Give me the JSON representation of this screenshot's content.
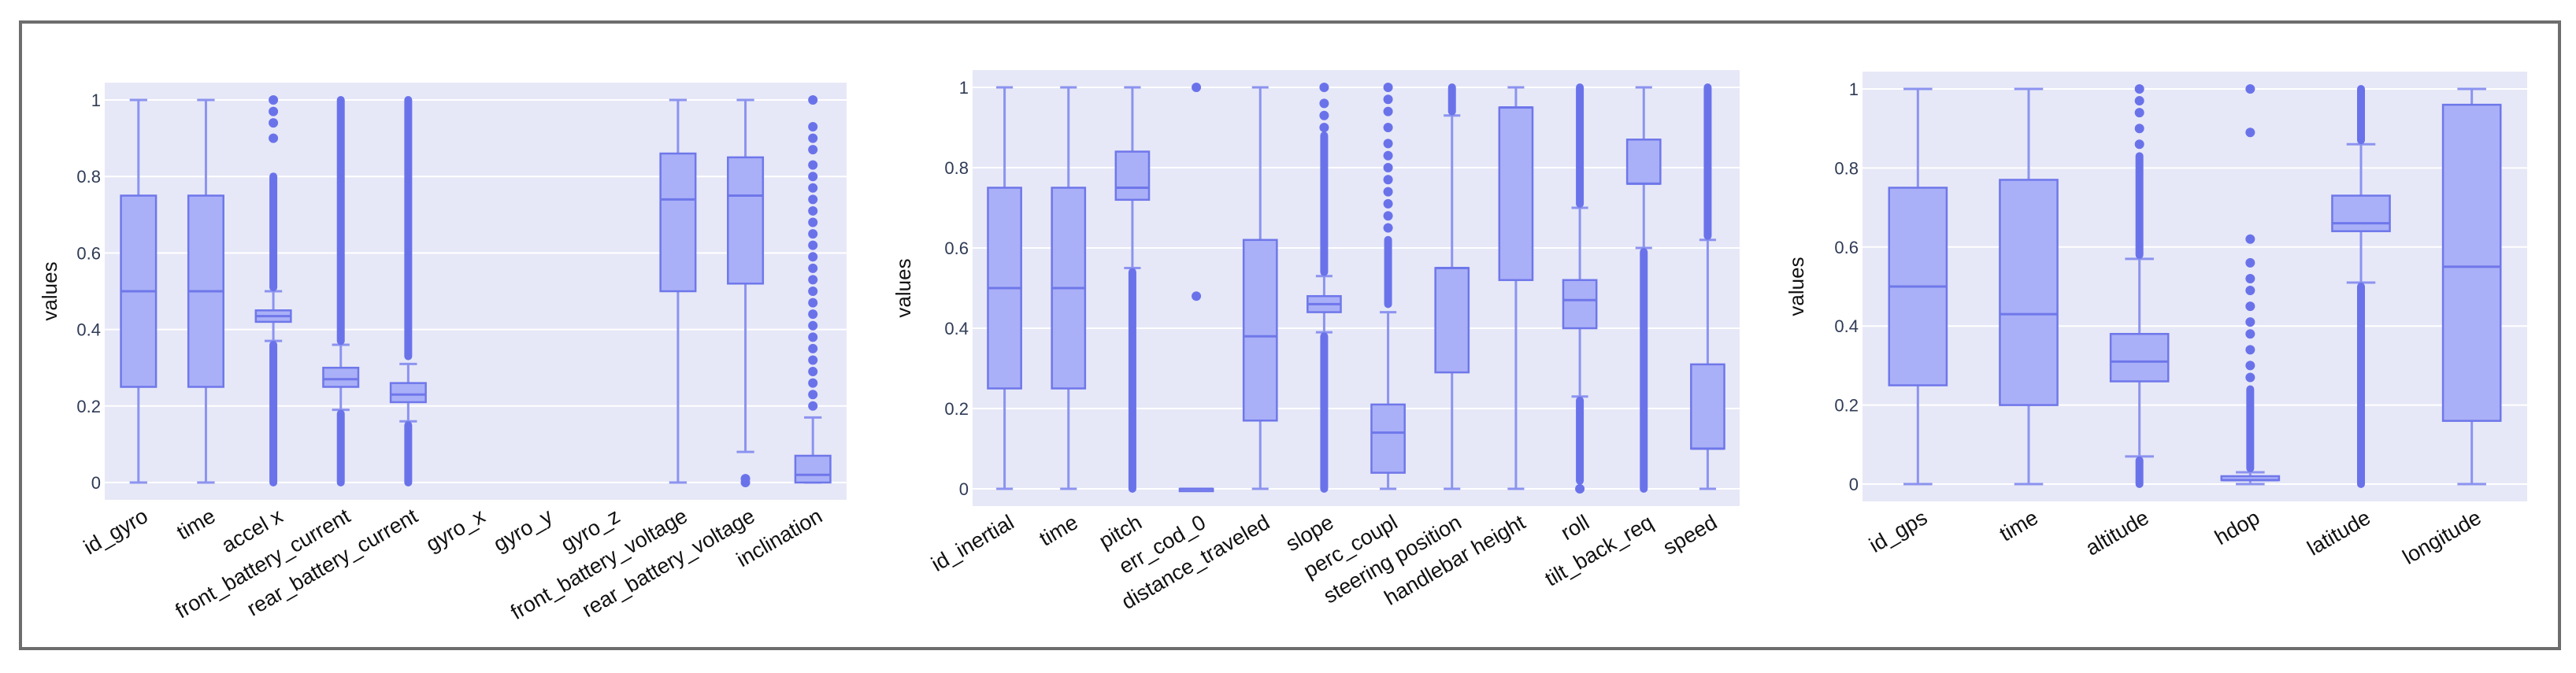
{
  "colors": {
    "box_fill": "#aab0f7",
    "box_stroke": "#6f77ea",
    "whisker": "#8c93ef",
    "outlier": "#6a72ea",
    "plot_bg": "#e6e8f7",
    "grid": "#ffffff"
  },
  "chart_data": [
    {
      "type": "box",
      "ylabel": "values",
      "ylim": [
        0,
        1
      ],
      "yticks": [
        "0",
        "0.2",
        "0.4",
        "0.6",
        "0.8",
        "1"
      ],
      "grid": true,
      "categories": [
        "id_gyro",
        "time",
        "accel x",
        "front_battery_current",
        "rear_battery_current",
        "gyro_x",
        "gyro_y",
        "gyro_z",
        "front_battery_voltage",
        "rear_battery_voltage",
        "inclination"
      ],
      "boxes": [
        {
          "min": 0,
          "q1": 0.25,
          "median": 0.5,
          "q3": 0.75,
          "max": 1,
          "outliers": []
        },
        {
          "min": 0,
          "q1": 0.25,
          "median": 0.5,
          "q3": 0.75,
          "max": 1,
          "outliers": []
        },
        {
          "min": 0.37,
          "q1": 0.42,
          "median": 0.435,
          "q3": 0.45,
          "max": 0.5,
          "outlier_band": [
            [
              0,
              0.36
            ],
            [
              0.51,
              0.8
            ]
          ],
          "outliers": [
            0.9,
            0.94,
            0.97,
            1
          ]
        },
        {
          "min": 0.19,
          "q1": 0.25,
          "median": 0.27,
          "q3": 0.3,
          "max": 0.36,
          "outlier_band": [
            [
              0,
              0.18
            ],
            [
              0.37,
              1
            ]
          ],
          "outliers": []
        },
        {
          "min": 0.16,
          "q1": 0.21,
          "median": 0.23,
          "q3": 0.26,
          "max": 0.31,
          "outlier_band": [
            [
              0,
              0.15
            ],
            [
              0.33,
              1
            ]
          ],
          "outliers": []
        },
        null,
        null,
        null,
        {
          "min": 0,
          "q1": 0.5,
          "median": 0.74,
          "q3": 0.86,
          "max": 1,
          "outliers": []
        },
        {
          "min": 0.08,
          "q1": 0.52,
          "median": 0.75,
          "q3": 0.85,
          "max": 1,
          "outliers": [
            0.0,
            0.01
          ]
        },
        {
          "min": 0,
          "q1": 0.0,
          "median": 0.02,
          "q3": 0.07,
          "max": 0.17,
          "outliers": [
            0.2,
            0.23,
            0.26,
            0.29,
            0.32,
            0.35,
            0.38,
            0.41,
            0.44,
            0.47,
            0.5,
            0.53,
            0.56,
            0.59,
            0.62,
            0.65,
            0.68,
            0.71,
            0.74,
            0.77,
            0.8,
            0.83,
            0.87,
            0.9,
            0.93,
            1
          ]
        }
      ]
    },
    {
      "type": "box",
      "ylabel": "values",
      "ylim": [
        0,
        1
      ],
      "yticks": [
        "0",
        "0.2",
        "0.4",
        "0.6",
        "0.8",
        "1"
      ],
      "grid": true,
      "categories": [
        "id_inertial",
        "time",
        "pitch",
        "err_cod_0",
        "distance_traveled",
        "slope",
        "perc_coupl",
        "steering position",
        "handlebar height",
        "roll",
        "tilt_back_req",
        "speed"
      ],
      "boxes": [
        {
          "min": 0,
          "q1": 0.25,
          "median": 0.5,
          "q3": 0.75,
          "max": 1,
          "outliers": []
        },
        {
          "min": 0,
          "q1": 0.25,
          "median": 0.5,
          "q3": 0.75,
          "max": 1,
          "outliers": []
        },
        {
          "min": 0.55,
          "q1": 0.72,
          "median": 0.75,
          "q3": 0.84,
          "max": 1,
          "outlier_band": [
            [
              0,
              0.54
            ]
          ],
          "outliers": []
        },
        {
          "min": 0,
          "q1": 0,
          "median": 0,
          "q3": 0,
          "max": 0,
          "outliers": [
            0.48,
            1
          ]
        },
        {
          "min": 0,
          "q1": 0.17,
          "median": 0.38,
          "q3": 0.62,
          "max": 1,
          "outliers": []
        },
        {
          "min": 0.39,
          "q1": 0.44,
          "median": 0.46,
          "q3": 0.48,
          "max": 0.53,
          "outlier_band": [
            [
              0,
              0.38
            ],
            [
              0.54,
              0.88
            ]
          ],
          "outliers": [
            0.9,
            0.93,
            0.96,
            1
          ]
        },
        {
          "min": 0,
          "q1": 0.04,
          "median": 0.14,
          "q3": 0.21,
          "max": 0.44,
          "outlier_band": [
            [
              0.46,
              0.62
            ]
          ],
          "outliers": [
            0.65,
            0.68,
            0.71,
            0.74,
            0.77,
            0.8,
            0.83,
            0.86,
            0.9,
            0.94,
            0.97,
            1
          ]
        },
        {
          "min": 0,
          "q1": 0.29,
          "median": 0.55,
          "q3": 0.55,
          "max": 0.93,
          "outlier_band": [
            [
              0.94,
              1
            ]
          ],
          "outliers": []
        },
        {
          "min": 0,
          "q1": 0.52,
          "median": 0.95,
          "q3": 0.95,
          "max": 1,
          "outliers": []
        },
        {
          "min": 0.23,
          "q1": 0.4,
          "median": 0.47,
          "q3": 0.52,
          "max": 0.7,
          "outlier_band": [
            [
              0.02,
              0.22
            ],
            [
              0.71,
              1
            ]
          ],
          "outliers": [
            0
          ]
        },
        {
          "min": 0.6,
          "q1": 0.76,
          "median": 0.76,
          "q3": 0.87,
          "max": 1,
          "outlier_band": [
            [
              0,
              0.59
            ]
          ],
          "outliers": []
        },
        {
          "min": 0,
          "q1": 0.1,
          "median": 0.1,
          "q3": 0.31,
          "max": 0.62,
          "outlier_band": [
            [
              0.63,
              1
            ]
          ],
          "outliers": []
        }
      ]
    },
    {
      "type": "box",
      "ylabel": "values",
      "ylim": [
        0,
        1
      ],
      "yticks": [
        "0",
        "0.2",
        "0.4",
        "0.6",
        "0.8",
        "1"
      ],
      "grid": true,
      "categories": [
        "id_gps",
        "time",
        "altitude",
        "hdop",
        "latitude",
        "longitude"
      ],
      "boxes": [
        {
          "min": 0,
          "q1": 0.25,
          "median": 0.5,
          "q3": 0.75,
          "max": 1,
          "outliers": []
        },
        {
          "min": 0,
          "q1": 0.2,
          "median": 0.43,
          "q3": 0.77,
          "max": 1,
          "outliers": []
        },
        {
          "min": 0.07,
          "q1": 0.26,
          "median": 0.31,
          "q3": 0.38,
          "max": 0.57,
          "outlier_band": [
            [
              0,
              0.06
            ],
            [
              0.58,
              0.83
            ]
          ],
          "outliers": [
            0.86,
            0.9,
            0.94,
            0.97,
            1
          ]
        },
        {
          "min": 0,
          "q1": 0.01,
          "median": 0.01,
          "q3": 0.02,
          "max": 0.03,
          "outlier_band": [
            [
              0.04,
              0.24
            ]
          ],
          "outliers": [
            0.27,
            0.3,
            0.34,
            0.38,
            0.41,
            0.45,
            0.49,
            0.52,
            0.56,
            0.62,
            0.89,
            1
          ]
        },
        {
          "min": 0.51,
          "q1": 0.64,
          "median": 0.66,
          "q3": 0.73,
          "max": 0.86,
          "outlier_band": [
            [
              0,
              0.5
            ],
            [
              0.87,
              1
            ]
          ],
          "outliers": []
        },
        {
          "min": 0,
          "q1": 0.16,
          "median": 0.55,
          "q3": 0.96,
          "max": 1,
          "outliers": []
        }
      ]
    }
  ]
}
